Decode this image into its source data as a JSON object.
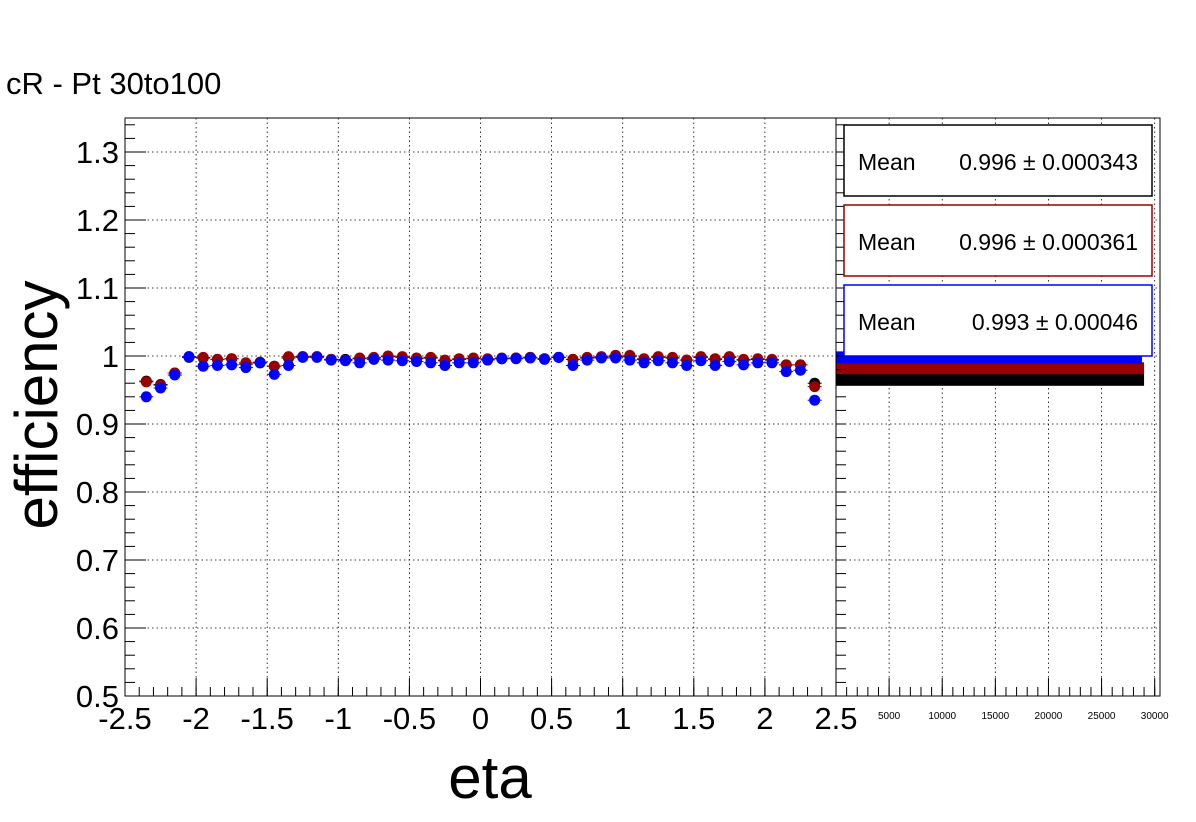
{
  "chart_data": [
    {
      "type": "scatter",
      "title": "cR - Pt 30to100",
      "xlabel": "eta",
      "ylabel": "efficiency",
      "xlim": [
        -2.5,
        2.5
      ],
      "ylim": [
        0.5,
        1.35
      ],
      "xticks": [
        "-2.5",
        "-2",
        "-1.5",
        "-1",
        "-0.5",
        "0",
        "0.5",
        "1",
        "1.5",
        "2",
        "2.5"
      ],
      "yticks": [
        "0.5",
        "0.6",
        "0.7",
        "0.8",
        "0.9",
        "1",
        "1.1",
        "1.2",
        "1.3"
      ],
      "grid": true,
      "x": [
        -2.35,
        -2.25,
        -2.15,
        -2.05,
        -1.95,
        -1.85,
        -1.75,
        -1.65,
        -1.55,
        -1.45,
        -1.35,
        -1.25,
        -1.15,
        -1.05,
        -0.95,
        -0.85,
        -0.75,
        -0.65,
        -0.55,
        -0.45,
        -0.35,
        -0.25,
        -0.15,
        -0.05,
        0.05,
        0.15,
        0.25,
        0.35,
        0.45,
        0.55,
        0.65,
        0.75,
        0.85,
        0.95,
        1.05,
        1.15,
        1.25,
        1.35,
        1.45,
        1.55,
        1.65,
        1.75,
        1.85,
        1.95,
        2.05,
        2.15,
        2.25,
        2.35
      ],
      "series": [
        {
          "color": "#000000",
          "values": [
            0.963,
            0.958,
            0.975,
            0.998,
            0.997,
            0.995,
            0.996,
            0.988,
            0.99,
            0.985,
            0.997,
            0.999,
            0.999,
            0.995,
            0.995,
            0.996,
            0.997,
            0.999,
            0.998,
            0.996,
            0.997,
            0.993,
            0.995,
            0.996,
            0.995,
            0.996,
            0.997,
            0.998,
            0.996,
            0.998,
            0.995,
            0.997,
            0.998,
            0.999,
            0.999,
            0.995,
            0.998,
            0.997,
            0.994,
            0.998,
            0.995,
            0.998,
            0.994,
            0.995,
            0.994,
            0.987,
            0.987,
            0.96
          ]
        },
        {
          "color": "#990000",
          "values": [
            0.962,
            0.957,
            0.975,
            0.999,
            0.998,
            0.995,
            0.996,
            0.99,
            0.991,
            0.985,
            0.999,
            0.999,
            0.999,
            0.995,
            0.994,
            0.997,
            0.998,
            1.0,
            0.999,
            0.997,
            0.998,
            0.994,
            0.996,
            0.997,
            0.996,
            0.997,
            0.997,
            0.998,
            0.996,
            0.998,
            0.995,
            0.998,
            0.999,
            1.001,
            1.001,
            0.996,
            0.999,
            0.998,
            0.994,
            0.999,
            0.996,
            0.999,
            0.995,
            0.996,
            0.995,
            0.987,
            0.987,
            0.955
          ]
        },
        {
          "color": "#0000ff",
          "values": [
            0.94,
            0.953,
            0.972,
            0.999,
            0.985,
            0.986,
            0.987,
            0.983,
            0.99,
            0.973,
            0.986,
            0.998,
            0.998,
            0.994,
            0.993,
            0.99,
            0.995,
            0.994,
            0.993,
            0.992,
            0.99,
            0.986,
            0.99,
            0.99,
            0.994,
            0.996,
            0.996,
            0.997,
            0.995,
            0.998,
            0.986,
            0.994,
            0.997,
            0.997,
            0.994,
            0.99,
            0.993,
            0.99,
            0.986,
            0.993,
            0.986,
            0.992,
            0.987,
            0.99,
            0.99,
            0.977,
            0.979,
            0.935
          ]
        }
      ]
    },
    {
      "type": "bar",
      "orientation": "horizontal",
      "xticks": [
        "5000",
        "10000",
        "15000",
        "20000",
        "25000",
        "30000"
      ],
      "xlim": [
        0,
        30500
      ],
      "ylim": [
        0.5,
        1.35
      ],
      "grid": true,
      "series": [
        {
          "color": "#000000",
          "y": 0.965,
          "value": 29000
        },
        {
          "color": "#990000",
          "y": 0.982,
          "value": 29000
        },
        {
          "color": "#0000ff",
          "y": 0.998,
          "value": 28800
        }
      ],
      "stats": [
        {
          "label": "Mean",
          "value": "0.996 ± 0.000343",
          "border": "#000000"
        },
        {
          "label": "Mean",
          "value": "0.996 ± 0.000361",
          "border": "#990000"
        },
        {
          "label": "Mean",
          "value": "0.993 ± 0.00046",
          "border": "#0000ff"
        }
      ]
    }
  ]
}
